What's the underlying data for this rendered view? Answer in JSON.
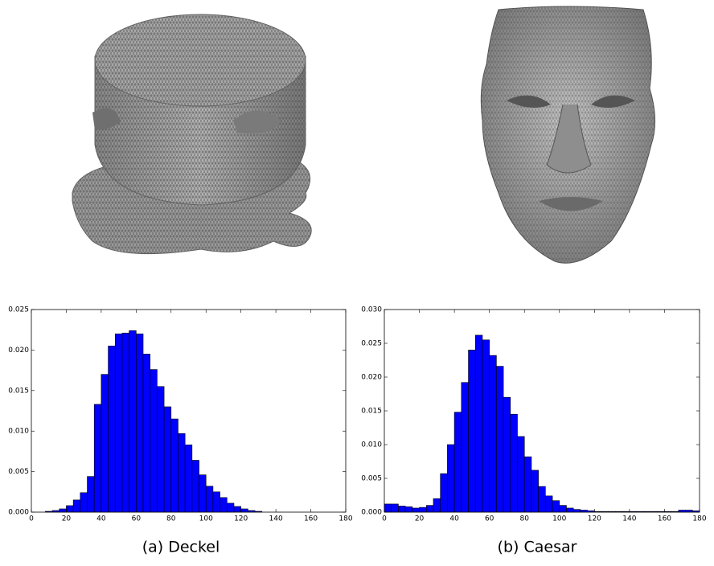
{
  "chart_data": [
    {
      "type": "histogram",
      "caption": "(a) Deckel",
      "color": "#0000ff",
      "bins": [
        0,
        4,
        8,
        12,
        16,
        20,
        24,
        28,
        32,
        36,
        40,
        44,
        48,
        52,
        56,
        60,
        64,
        68,
        72,
        76,
        80,
        84,
        88,
        92,
        96,
        100,
        104,
        108,
        112,
        116,
        120,
        124,
        128,
        132,
        136,
        140,
        144,
        148,
        152,
        156,
        160,
        164,
        168,
        172,
        176,
        180
      ],
      "values": [
        0,
        0,
        0.0001,
        0.0002,
        0.0004,
        0.0008,
        0.0015,
        0.0024,
        0.0044,
        0.0133,
        0.017,
        0.0205,
        0.022,
        0.0221,
        0.0224,
        0.022,
        0.0195,
        0.0176,
        0.0155,
        0.013,
        0.0115,
        0.0097,
        0.0083,
        0.0064,
        0.0046,
        0.0032,
        0.0025,
        0.0018,
        0.0011,
        0.0007,
        0.0004,
        0.0002,
        0.0001,
        0,
        0,
        0,
        0,
        0,
        0,
        0,
        0,
        0,
        0,
        0,
        0
      ],
      "xlim": [
        0,
        180
      ],
      "xticks": [
        0,
        20,
        40,
        60,
        80,
        100,
        120,
        140,
        160,
        180
      ],
      "ylim": [
        0,
        0.025
      ],
      "yticks": [
        {
          "value": 0,
          "label": "0.000"
        },
        {
          "value": 0.005,
          "label": "0.005"
        },
        {
          "value": 0.01,
          "label": "0.010"
        },
        {
          "value": 0.015,
          "label": "0.015"
        },
        {
          "value": 0.02,
          "label": "0.020"
        },
        {
          "value": 0.025,
          "label": "0.025"
        }
      ]
    },
    {
      "type": "histogram",
      "caption": "(b) Caesar",
      "color": "#0000ff",
      "bins": [
        0,
        4,
        8,
        12,
        16,
        20,
        24,
        28,
        32,
        36,
        40,
        44,
        48,
        52,
        56,
        60,
        64,
        68,
        72,
        76,
        80,
        84,
        88,
        92,
        96,
        100,
        104,
        108,
        112,
        116,
        120,
        124,
        128,
        132,
        136,
        140,
        144,
        148,
        152,
        156,
        160,
        164,
        168,
        172,
        176,
        180
      ],
      "values": [
        0.0012,
        0.0012,
        0.0009,
        0.0008,
        0.0006,
        0.0007,
        0.001,
        0.002,
        0.0057,
        0.01,
        0.0148,
        0.0192,
        0.024,
        0.0262,
        0.0255,
        0.0232,
        0.0216,
        0.017,
        0.0145,
        0.0112,
        0.0082,
        0.0062,
        0.0038,
        0.0024,
        0.0017,
        0.001,
        0.0006,
        0.0004,
        0.0003,
        0.0002,
        0.0001,
        0.0001,
        0.0001,
        0.0001,
        0.0001,
        0.0001,
        0.0001,
        0.0001,
        0.0001,
        0.0001,
        0.0001,
        0.0001,
        0.0003,
        0.0003,
        0.0002
      ],
      "xlim": [
        0,
        180
      ],
      "xticks": [
        0,
        20,
        40,
        60,
        80,
        100,
        120,
        140,
        160,
        180
      ],
      "ylim": [
        0,
        0.03
      ],
      "yticks": [
        {
          "value": 0,
          "label": "0.000"
        },
        {
          "value": 0.005,
          "label": "0.005"
        },
        {
          "value": 0.01,
          "label": "0.010"
        },
        {
          "value": 0.015,
          "label": "0.015"
        },
        {
          "value": 0.02,
          "label": "0.020"
        },
        {
          "value": 0.025,
          "label": "0.025"
        },
        {
          "value": 0.03,
          "label": "0.030"
        }
      ]
    }
  ]
}
